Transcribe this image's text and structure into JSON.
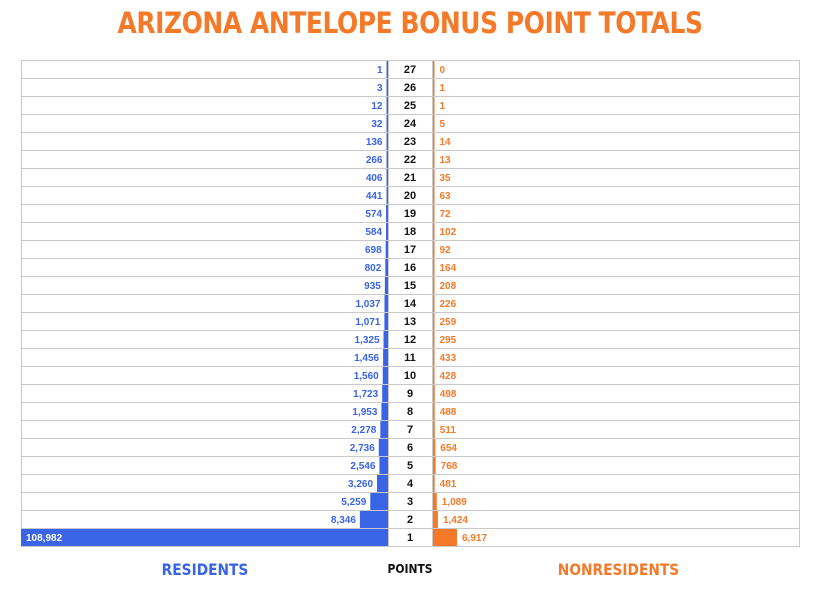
{
  "colors": {
    "resident": "#3a64e6",
    "nonresident": "#f47a2a",
    "grid": "#c9c9c9",
    "title": "#f47a2a"
  },
  "labels": {
    "resident": "RESIDENTS",
    "points": "POINTS",
    "nonresident": "NONRESIDENTS"
  },
  "chart_data": {
    "type": "bar",
    "orientation": "horizontal-butterfly",
    "title": "ARIZONA ANTELOPE BONUS POINT TOTALS",
    "xlabel": "",
    "ylabel": "POINTS",
    "categories": [
      "27",
      "26",
      "25",
      "24",
      "23",
      "22",
      "21",
      "20",
      "19",
      "18",
      "17",
      "16",
      "15",
      "14",
      "13",
      "12",
      "11",
      "10",
      "9",
      "8",
      "7",
      "6",
      "5",
      "4",
      "3",
      "2",
      "1"
    ],
    "series": [
      {
        "name": "RESIDENTS",
        "values": [
          1,
          3,
          12,
          32,
          136,
          266,
          406,
          441,
          574,
          584,
          698,
          802,
          935,
          1037,
          1071,
          1325,
          1456,
          1560,
          1723,
          1953,
          2278,
          2736,
          2546,
          3260,
          5259,
          8346,
          108982
        ],
        "labels": [
          "1",
          "3",
          "12",
          "32",
          "136",
          "266",
          "406",
          "441",
          "574",
          "584",
          "698",
          "802",
          "935",
          "1,037",
          "1,071",
          "1,325",
          "1,456",
          "1,560",
          "1,723",
          "1,953",
          "2,278",
          "2,736",
          "2,546",
          "3,260",
          "5,259",
          "8,346",
          "108,982"
        ]
      },
      {
        "name": "NONRESIDENTS",
        "values": [
          0,
          1,
          1,
          5,
          14,
          13,
          35,
          63,
          72,
          102,
          92,
          164,
          208,
          226,
          259,
          295,
          433,
          428,
          498,
          488,
          511,
          654,
          768,
          481,
          1089,
          1424,
          6917
        ],
        "labels": [
          "0",
          "1",
          "1",
          "5",
          "14",
          "13",
          "35",
          "63",
          "72",
          "102",
          "92",
          "164",
          "208",
          "226",
          "259",
          "295",
          "433",
          "428",
          "498",
          "488",
          "511",
          "654",
          "768",
          "481",
          "1,089",
          "1,424",
          "6,917"
        ]
      }
    ],
    "grid": true,
    "legend": "bottom"
  }
}
